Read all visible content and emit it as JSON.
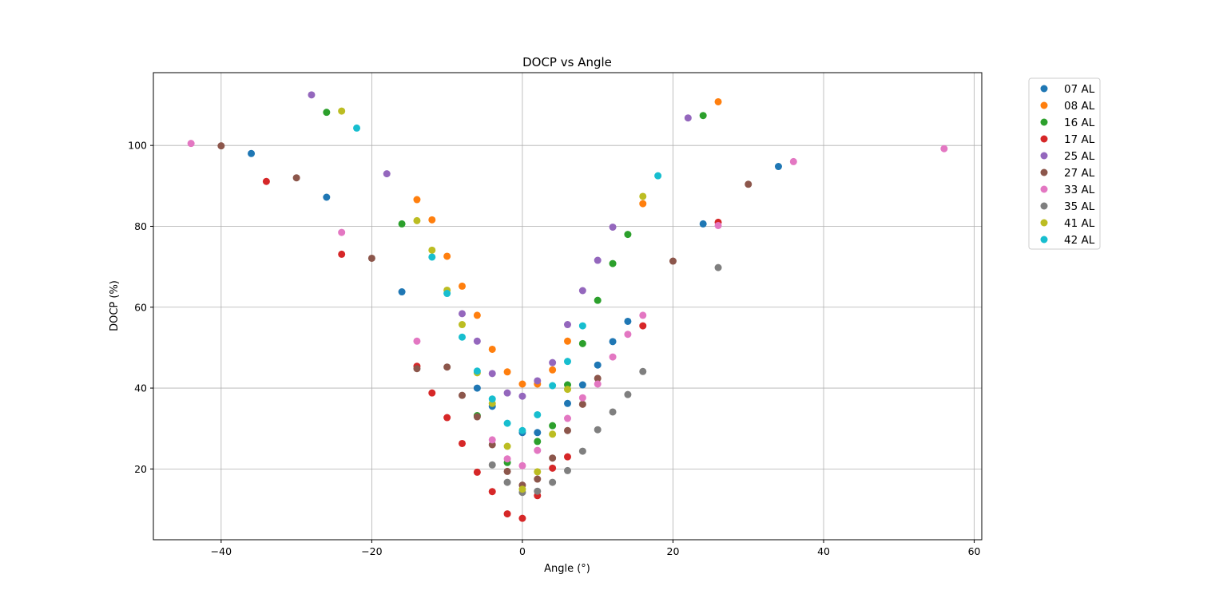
{
  "chart_data": {
    "type": "scatter",
    "title": "DOCP vs Angle",
    "xlabel": "Angle (°)",
    "ylabel": "DOCP (%)",
    "xlim": [
      -49,
      61
    ],
    "ylim": [
      2.5,
      118
    ],
    "xticks": [
      -40,
      -20,
      0,
      20,
      40,
      60
    ],
    "yticks": [
      20,
      40,
      60,
      80,
      100
    ],
    "xtick_labels": [
      "−40",
      "−20",
      "0",
      "20",
      "40",
      "60"
    ],
    "ytick_labels": [
      "20",
      "40",
      "60",
      "80",
      "100"
    ],
    "grid": true,
    "legend_position": "outside-top-right",
    "series": [
      {
        "name": "07 AL",
        "color": "#1f77b4",
        "points": [
          [
            -36,
            98
          ],
          [
            -26,
            87.2
          ],
          [
            -16,
            63.8
          ],
          [
            -6,
            40
          ],
          [
            -4,
            35.5
          ],
          [
            0,
            29
          ],
          [
            2,
            29
          ],
          [
            6,
            36.2
          ],
          [
            8,
            40.8
          ],
          [
            10,
            45.7
          ],
          [
            12,
            51.5
          ],
          [
            14,
            56.5
          ],
          [
            24,
            80.6
          ],
          [
            34,
            94.8
          ]
        ]
      },
      {
        "name": "08 AL",
        "color": "#ff7f0e",
        "points": [
          [
            -14,
            86.6
          ],
          [
            -12,
            81.6
          ],
          [
            -10,
            72.6
          ],
          [
            -8,
            65.2
          ],
          [
            -6,
            58
          ],
          [
            -4,
            49.6
          ],
          [
            -2,
            44
          ],
          [
            0,
            41
          ],
          [
            2,
            41
          ],
          [
            4,
            44.5
          ],
          [
            6,
            51.6
          ],
          [
            16,
            85.6
          ],
          [
            26,
            110.8
          ]
        ]
      },
      {
        "name": "16 AL",
        "color": "#2ca02c",
        "points": [
          [
            -26,
            108.2
          ],
          [
            -16,
            80.6
          ],
          [
            -6,
            33.2
          ],
          [
            -2,
            21.6
          ],
          [
            2,
            26.8
          ],
          [
            4,
            30.7
          ],
          [
            6,
            40.8
          ],
          [
            8,
            51
          ],
          [
            10,
            61.7
          ],
          [
            12,
            70.8
          ],
          [
            14,
            78
          ],
          [
            24,
            107.4
          ]
        ]
      },
      {
        "name": "17 AL",
        "color": "#d62728",
        "points": [
          [
            -34,
            91.1
          ],
          [
            -24,
            73.1
          ],
          [
            -14,
            45.4
          ],
          [
            -12,
            38.8
          ],
          [
            -10,
            32.7
          ],
          [
            -8,
            26.3
          ],
          [
            -6,
            19.2
          ],
          [
            -4,
            14.4
          ],
          [
            -2,
            8.9
          ],
          [
            0,
            7.8
          ],
          [
            2,
            13.4
          ],
          [
            4,
            20.2
          ],
          [
            6,
            23
          ],
          [
            16,
            55.4
          ],
          [
            26,
            81
          ]
        ]
      },
      {
        "name": "25 AL",
        "color": "#9467bd",
        "points": [
          [
            -28,
            112.5
          ],
          [
            -18,
            93
          ],
          [
            -8,
            58.4
          ],
          [
            -6,
            51.6
          ],
          [
            -4,
            43.6
          ],
          [
            -2,
            38.8
          ],
          [
            0,
            38
          ],
          [
            2,
            41.8
          ],
          [
            4,
            46.3
          ],
          [
            6,
            55.7
          ],
          [
            8,
            64.1
          ],
          [
            10,
            71.6
          ],
          [
            12,
            79.8
          ],
          [
            22,
            106.8
          ]
        ]
      },
      {
        "name": "27 AL",
        "color": "#8c564b",
        "points": [
          [
            -40,
            99.9
          ],
          [
            -30,
            92
          ],
          [
            -20,
            72.1
          ],
          [
            -14,
            44.8
          ],
          [
            -10,
            45.2
          ],
          [
            -8,
            38.2
          ],
          [
            -6,
            32.9
          ],
          [
            -4,
            26
          ],
          [
            -2,
            19.4
          ],
          [
            0,
            16
          ],
          [
            2,
            17.5
          ],
          [
            4,
            22.7
          ],
          [
            6,
            29.5
          ],
          [
            8,
            36
          ],
          [
            10,
            42.4
          ],
          [
            20,
            71.4
          ],
          [
            30,
            90.4
          ]
        ]
      },
      {
        "name": "33 AL",
        "color": "#e377c2",
        "points": [
          [
            -44,
            100.5
          ],
          [
            -24,
            78.5
          ],
          [
            -14,
            51.6
          ],
          [
            -4,
            27.2
          ],
          [
            -2,
            22.5
          ],
          [
            0,
            20.8
          ],
          [
            2,
            24.6
          ],
          [
            6,
            32.5
          ],
          [
            8,
            37.6
          ],
          [
            10,
            41
          ],
          [
            12,
            47.7
          ],
          [
            14,
            53.3
          ],
          [
            16,
            58
          ],
          [
            26,
            80.2
          ],
          [
            36,
            96
          ],
          [
            56,
            99.2
          ]
        ]
      },
      {
        "name": "35 AL",
        "color": "#7f7f7f",
        "points": [
          [
            -4,
            21
          ],
          [
            -2,
            16.7
          ],
          [
            0,
            14.2
          ],
          [
            2,
            14.5
          ],
          [
            4,
            16.7
          ],
          [
            6,
            19.6
          ],
          [
            8,
            24.4
          ],
          [
            10,
            29.7
          ],
          [
            12,
            34.1
          ],
          [
            14,
            38.4
          ],
          [
            16,
            44.1
          ],
          [
            26,
            69.8
          ]
        ]
      },
      {
        "name": "41 AL",
        "color": "#bcbd22",
        "points": [
          [
            -24,
            108.5
          ],
          [
            -14,
            81.4
          ],
          [
            -12,
            74.1
          ],
          [
            -10,
            64.2
          ],
          [
            -8,
            55.7
          ],
          [
            -6,
            43.8
          ],
          [
            -4,
            36.2
          ],
          [
            -2,
            25.6
          ],
          [
            0,
            15
          ],
          [
            2,
            19.3
          ],
          [
            4,
            28.6
          ],
          [
            6,
            39.7
          ],
          [
            16,
            87.4
          ]
        ]
      },
      {
        "name": "42 AL",
        "color": "#17becf",
        "points": [
          [
            -22,
            104.3
          ],
          [
            -12,
            72.4
          ],
          [
            -10,
            63.4
          ],
          [
            -8,
            52.6
          ],
          [
            -6,
            44.2
          ],
          [
            -4,
            37.3
          ],
          [
            -2,
            31.3
          ],
          [
            0,
            29.5
          ],
          [
            2,
            33.4
          ],
          [
            4,
            40.6
          ],
          [
            6,
            46.6
          ],
          [
            8,
            55.4
          ],
          [
            18,
            92.5
          ]
        ]
      }
    ]
  }
}
